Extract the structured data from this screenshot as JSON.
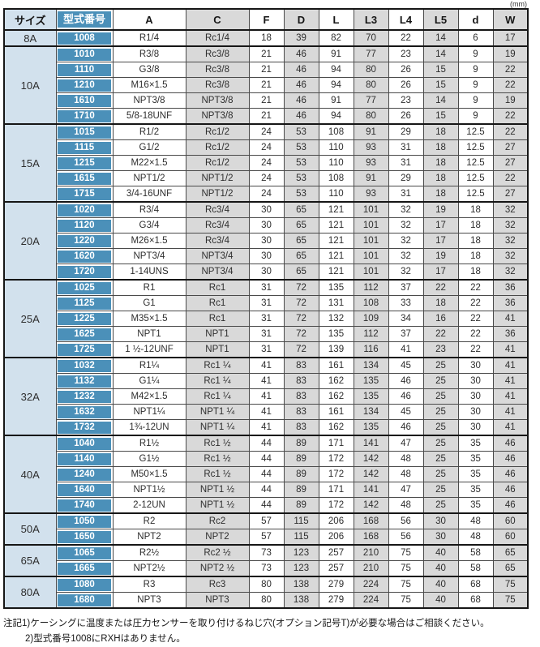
{
  "unit_label": "(mm)",
  "table": {
    "headers": [
      "サイズ",
      "型式番号",
      "A",
      "C",
      "F",
      "D",
      "L",
      "L3",
      "L4",
      "L5",
      "d",
      "W"
    ],
    "groups": [
      {
        "size": "8A",
        "rows": [
          [
            "1008",
            "R1/4",
            "Rc1/4",
            "18",
            "39",
            "82",
            "70",
            "22",
            "14",
            "6",
            "17"
          ]
        ]
      },
      {
        "size": "10A",
        "rows": [
          [
            "1010",
            "R3/8",
            "Rc3/8",
            "21",
            "46",
            "91",
            "77",
            "23",
            "14",
            "9",
            "19"
          ],
          [
            "1110",
            "G3/8",
            "Rc3/8",
            "21",
            "46",
            "94",
            "80",
            "26",
            "15",
            "9",
            "22"
          ],
          [
            "1210",
            "M16×1.5",
            "Rc3/8",
            "21",
            "46",
            "94",
            "80",
            "26",
            "15",
            "9",
            "22"
          ],
          [
            "1610",
            "NPT3/8",
            "NPT3/8",
            "21",
            "46",
            "91",
            "77",
            "23",
            "14",
            "9",
            "19"
          ],
          [
            "1710",
            "5/8-18UNF",
            "NPT3/8",
            "21",
            "46",
            "94",
            "80",
            "26",
            "15",
            "9",
            "22"
          ]
        ]
      },
      {
        "size": "15A",
        "rows": [
          [
            "1015",
            "R1/2",
            "Rc1/2",
            "24",
            "53",
            "108",
            "91",
            "29",
            "18",
            "12.5",
            "22"
          ],
          [
            "1115",
            "G1/2",
            "Rc1/2",
            "24",
            "53",
            "110",
            "93",
            "31",
            "18",
            "12.5",
            "27"
          ],
          [
            "1215",
            "M22×1.5",
            "Rc1/2",
            "24",
            "53",
            "110",
            "93",
            "31",
            "18",
            "12.5",
            "27"
          ],
          [
            "1615",
            "NPT1/2",
            "NPT1/2",
            "24",
            "53",
            "108",
            "91",
            "29",
            "18",
            "12.5",
            "22"
          ],
          [
            "1715",
            "3/4-16UNF",
            "NPT1/2",
            "24",
            "53",
            "110",
            "93",
            "31",
            "18",
            "12.5",
            "27"
          ]
        ]
      },
      {
        "size": "20A",
        "rows": [
          [
            "1020",
            "R3/4",
            "Rc3/4",
            "30",
            "65",
            "121",
            "101",
            "32",
            "19",
            "18",
            "32"
          ],
          [
            "1120",
            "G3/4",
            "Rc3/4",
            "30",
            "65",
            "121",
            "101",
            "32",
            "17",
            "18",
            "32"
          ],
          [
            "1220",
            "M26×1.5",
            "Rc3/4",
            "30",
            "65",
            "121",
            "101",
            "32",
            "17",
            "18",
            "32"
          ],
          [
            "1620",
            "NPT3/4",
            "NPT3/4",
            "30",
            "65",
            "121",
            "101",
            "32",
            "19",
            "18",
            "32"
          ],
          [
            "1720",
            "1-14UNS",
            "NPT3/4",
            "30",
            "65",
            "121",
            "101",
            "32",
            "17",
            "18",
            "32"
          ]
        ]
      },
      {
        "size": "25A",
        "rows": [
          [
            "1025",
            "R1",
            "Rc1",
            "31",
            "72",
            "135",
            "112",
            "37",
            "22",
            "22",
            "36"
          ],
          [
            "1125",
            "G1",
            "Rc1",
            "31",
            "72",
            "131",
            "108",
            "33",
            "18",
            "22",
            "36"
          ],
          [
            "1225",
            "M35×1.5",
            "Rc1",
            "31",
            "72",
            "132",
            "109",
            "34",
            "16",
            "22",
            "41"
          ],
          [
            "1625",
            "NPT1",
            "NPT1",
            "31",
            "72",
            "135",
            "112",
            "37",
            "22",
            "22",
            "36"
          ],
          [
            "1725",
            "1 ½-12UNF",
            "NPT1",
            "31",
            "72",
            "139",
            "116",
            "41",
            "23",
            "22",
            "41"
          ]
        ]
      },
      {
        "size": "32A",
        "rows": [
          [
            "1032",
            "R1¼",
            "Rc1 ¼",
            "41",
            "83",
            "161",
            "134",
            "45",
            "25",
            "30",
            "41"
          ],
          [
            "1132",
            "G1¼",
            "Rc1 ¼",
            "41",
            "83",
            "162",
            "135",
            "46",
            "25",
            "30",
            "41"
          ],
          [
            "1232",
            "M42×1.5",
            "Rc1 ¼",
            "41",
            "83",
            "162",
            "135",
            "46",
            "25",
            "30",
            "41"
          ],
          [
            "1632",
            "NPT1¼",
            "NPT1 ¼",
            "41",
            "83",
            "161",
            "134",
            "45",
            "25",
            "30",
            "41"
          ],
          [
            "1732",
            "1¾-12UN",
            "NPT1 ¼",
            "41",
            "83",
            "162",
            "135",
            "46",
            "25",
            "30",
            "41"
          ]
        ]
      },
      {
        "size": "40A",
        "rows": [
          [
            "1040",
            "R1½",
            "Rc1 ½",
            "44",
            "89",
            "171",
            "141",
            "47",
            "25",
            "35",
            "46"
          ],
          [
            "1140",
            "G1½",
            "Rc1 ½",
            "44",
            "89",
            "172",
            "142",
            "48",
            "25",
            "35",
            "46"
          ],
          [
            "1240",
            "M50×1.5",
            "Rc1 ½",
            "44",
            "89",
            "172",
            "142",
            "48",
            "25",
            "35",
            "46"
          ],
          [
            "1640",
            "NPT1½",
            "NPT1 ½",
            "44",
            "89",
            "171",
            "141",
            "47",
            "25",
            "35",
            "46"
          ],
          [
            "1740",
            "2-12UN",
            "NPT1 ½",
            "44",
            "89",
            "172",
            "142",
            "48",
            "25",
            "35",
            "46"
          ]
        ]
      },
      {
        "size": "50A",
        "rows": [
          [
            "1050",
            "R2",
            "Rc2",
            "57",
            "115",
            "206",
            "168",
            "56",
            "30",
            "48",
            "60"
          ],
          [
            "1650",
            "NPT2",
            "NPT2",
            "57",
            "115",
            "206",
            "168",
            "56",
            "30",
            "48",
            "60"
          ]
        ]
      },
      {
        "size": "65A",
        "rows": [
          [
            "1065",
            "R2½",
            "Rc2 ½",
            "73",
            "123",
            "257",
            "210",
            "75",
            "40",
            "58",
            "65"
          ],
          [
            "1665",
            "NPT2½",
            "NPT2 ½",
            "73",
            "123",
            "257",
            "210",
            "75",
            "40",
            "58",
            "65"
          ]
        ]
      },
      {
        "size": "80A",
        "rows": [
          [
            "1080",
            "R3",
            "Rc3",
            "80",
            "138",
            "279",
            "224",
            "75",
            "40",
            "68",
            "75"
          ],
          [
            "1680",
            "NPT3",
            "NPT3",
            "80",
            "138",
            "279",
            "224",
            "75",
            "40",
            "68",
            "75"
          ]
        ]
      }
    ]
  },
  "notes": [
    "注記1)ケーシングに温度または圧力センサーを取り付けるねじ穴(オプション記号T)が必要な場合はご相談ください。",
    "2)型式番号1008にRXHはありません。"
  ],
  "colors": {
    "model_blue": "#4b90b9",
    "size_light_blue": "#d2e1ed",
    "column_gray": "#d9d9d9",
    "border_dark": "#161616"
  }
}
